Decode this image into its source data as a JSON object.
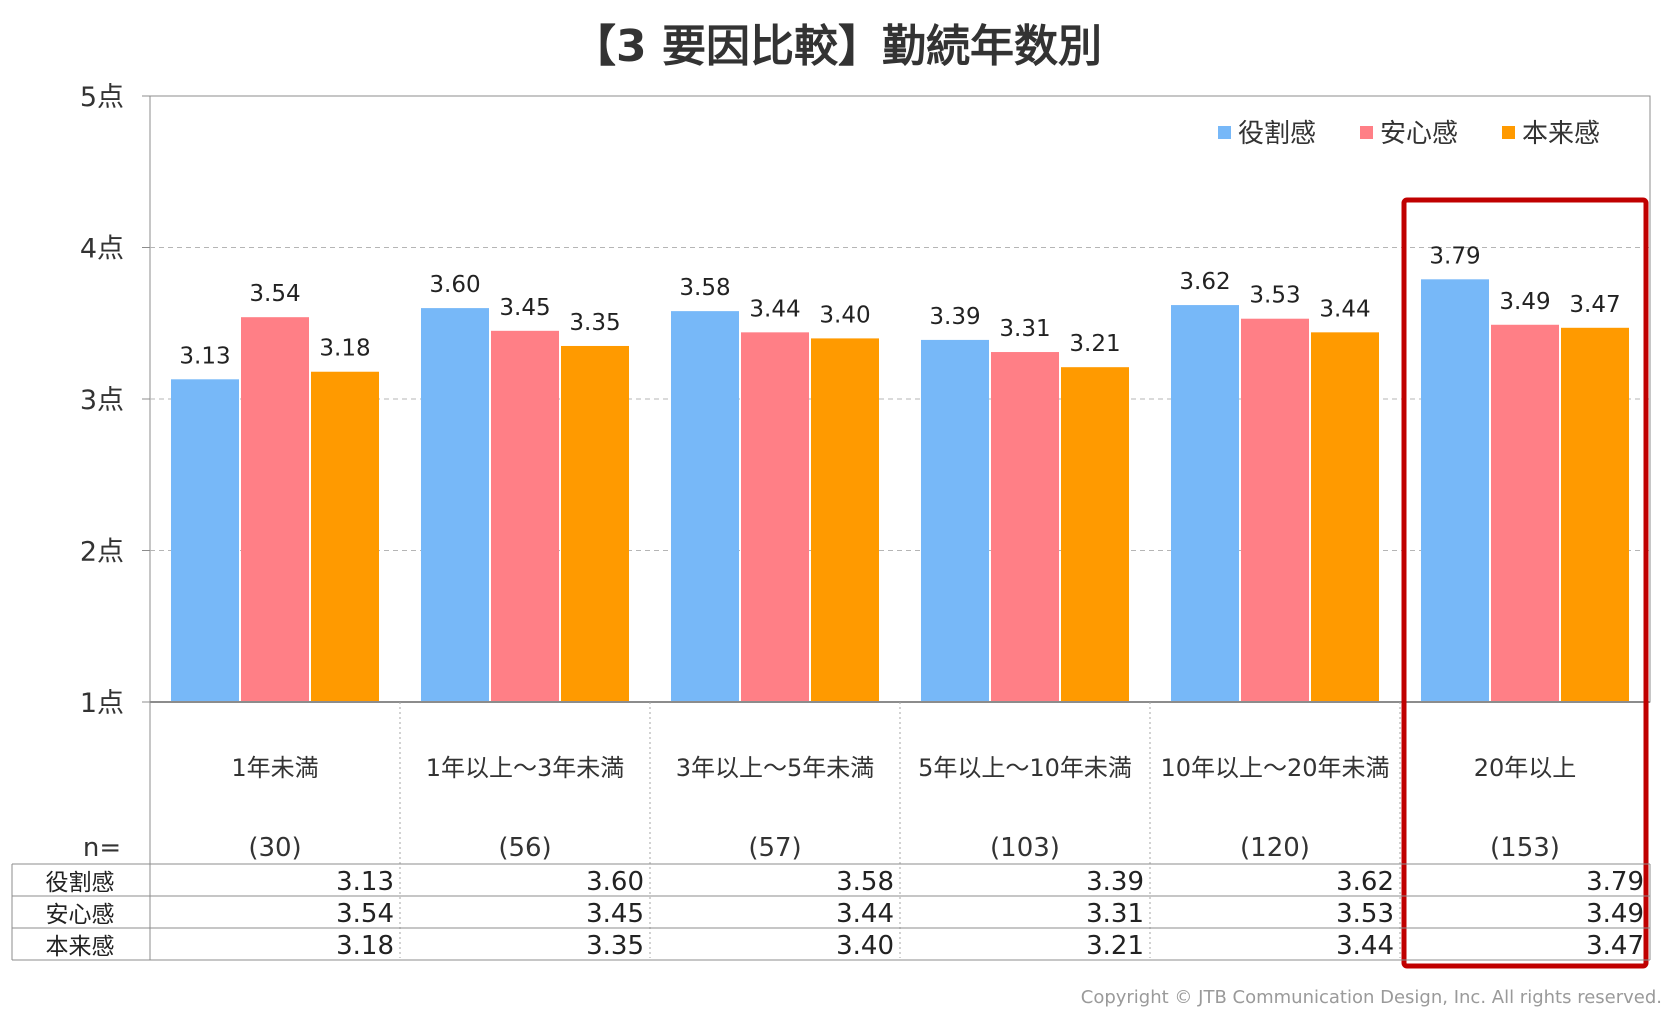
{
  "title": "【3 要因比較】勤続年数別",
  "copyright": "Copyright © JTB Communication Design, Inc. All rights reserved.",
  "n_label": "n=",
  "colors": {
    "role": "#77B8F8",
    "safety": "#FF7F86",
    "native": "#FF9A00",
    "highlight": "#C00000"
  },
  "chart_data": {
    "type": "bar",
    "title": "【3 要因比較】勤続年数別",
    "categories": [
      "1年未満",
      "1年以上～3年未満",
      "3年以上～5年未満",
      "5年以上～10年未満",
      "10年以上～20年未満",
      "20年以上"
    ],
    "n": [
      "(30)",
      "(56)",
      "(57)",
      "(103)",
      "(120)",
      "(153)"
    ],
    "series": [
      {
        "name": "役割感",
        "values": [
          3.13,
          3.6,
          3.58,
          3.39,
          3.62,
          3.79
        ],
        "labels": [
          "3.13",
          "3.60",
          "3.58",
          "3.39",
          "3.62",
          "3.79"
        ]
      },
      {
        "name": "安心感",
        "values": [
          3.54,
          3.45,
          3.44,
          3.31,
          3.53,
          3.49
        ],
        "labels": [
          "3.54",
          "3.45",
          "3.44",
          "3.31",
          "3.53",
          "3.49"
        ]
      },
      {
        "name": "本来感",
        "values": [
          3.18,
          3.35,
          3.4,
          3.21,
          3.44,
          3.47
        ],
        "labels": [
          "3.18",
          "3.35",
          "3.40",
          "3.21",
          "3.44",
          "3.47"
        ]
      }
    ],
    "ylim": [
      1,
      5
    ],
    "yticks": [
      "1点",
      "2点",
      "3点",
      "4点",
      "5点"
    ],
    "grid": true,
    "legend_position": "top-right",
    "highlighted_category": "20年以上"
  }
}
